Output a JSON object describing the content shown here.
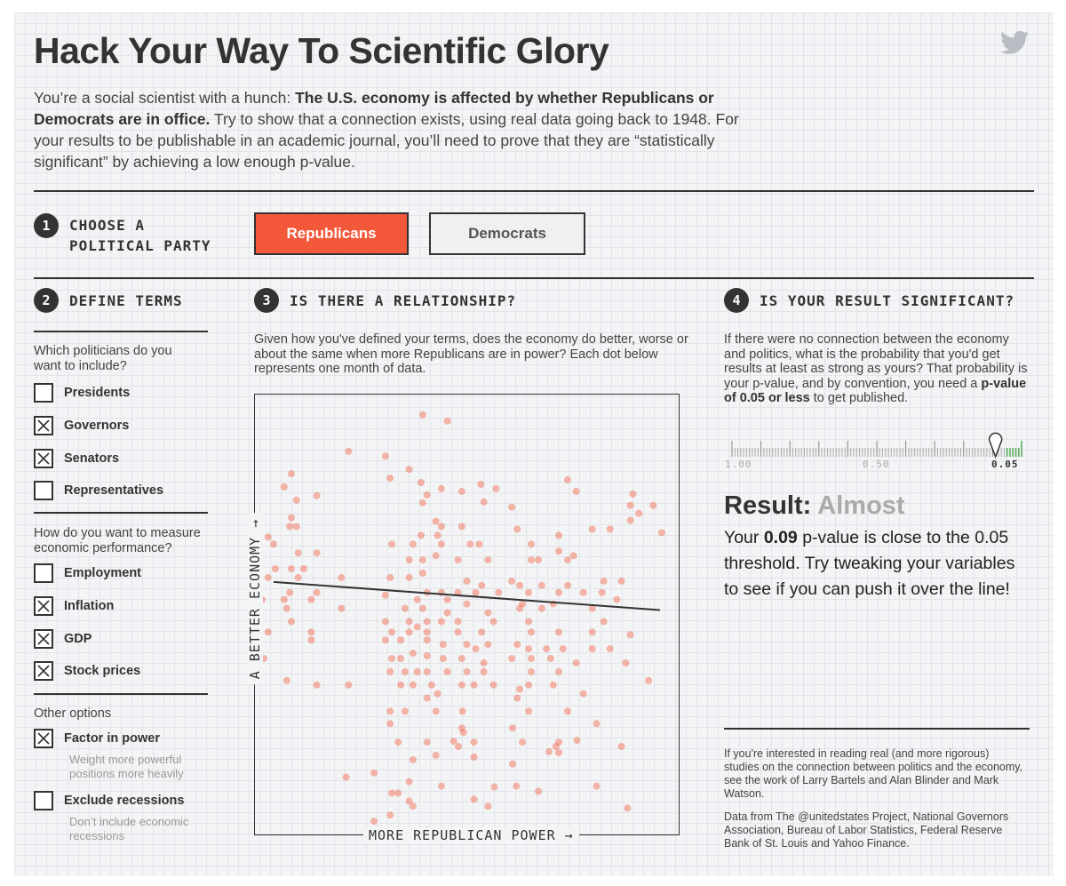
{
  "title": "Hack Your Way To Scientific Glory",
  "intro": {
    "lead": "You’re a social scientist with a hunch: ",
    "bold": "The U.S. economy is affected by whether Republicans or Democrats are in office.",
    "rest": " Try to show that a connection exists, using real data going back to 1948. For your results to be publishable in an academic journal, you’ll need to prove that they are “statistically significant” by achieving a low enough p-value."
  },
  "step1": {
    "num": "1",
    "label_line1": "CHOOSE A",
    "label_line2": "POLITICAL PARTY",
    "options": [
      "Republicans",
      "Democrats"
    ],
    "selected": "Republicans"
  },
  "step2": {
    "num": "2",
    "label": "DEFINE TERMS",
    "q1": "Which politicians do you want to include?",
    "politicians": [
      {
        "label": "Presidents",
        "checked": false
      },
      {
        "label": "Governors",
        "checked": true
      },
      {
        "label": "Senators",
        "checked": true
      },
      {
        "label": "Representatives",
        "checked": false
      }
    ],
    "q2": "How do you want to measure economic performance?",
    "measures": [
      {
        "label": "Employment",
        "checked": false
      },
      {
        "label": "Inflation",
        "checked": true
      },
      {
        "label": "GDP",
        "checked": true
      },
      {
        "label": "Stock prices",
        "checked": true
      }
    ],
    "other_label": "Other options",
    "factor": {
      "label": "Factor in power",
      "checked": true,
      "sub": "Weight more powerful positions more heavily"
    },
    "recess": {
      "label": "Exclude recessions",
      "checked": false,
      "sub": "Don’t include economic recessions"
    }
  },
  "step3": {
    "num": "3",
    "label": "IS THERE A RELATIONSHIP?",
    "desc": "Given how you've defined your terms, does the economy do better, worse or about the same when more Republicans are in power? Each dot below represents one month of data.",
    "y_label": "A BETTER ECONOMY →",
    "x_label": "MORE REPUBLICAN POWER →"
  },
  "chart_data": {
    "type": "scatter",
    "xlabel": "MORE REPUBLICAN POWER →",
    "ylabel": "A BETTER ECONOMY →",
    "xlim": [
      0,
      100
    ],
    "ylim": [
      0,
      100
    ],
    "color": "#f4583a",
    "points": [
      [
        39.6,
        95.4
      ],
      [
        45.4,
        94.0
      ],
      [
        22.1,
        87.1
      ],
      [
        30.8,
        86.0
      ],
      [
        36.4,
        83.0
      ],
      [
        31.9,
        81.0
      ],
      [
        8.6,
        82.0
      ],
      [
        6.9,
        79.0
      ],
      [
        39.2,
        80.0
      ],
      [
        53.3,
        79.6
      ],
      [
        56.9,
        78.6
      ],
      [
        73.8,
        80.6
      ],
      [
        44.0,
        78.6
      ],
      [
        48.8,
        78.0
      ],
      [
        14.6,
        77.0
      ],
      [
        9.8,
        76.0
      ],
      [
        39.6,
        75.4
      ],
      [
        40.6,
        77.2
      ],
      [
        54.0,
        75.6
      ],
      [
        60.6,
        74.4
      ],
      [
        75.8,
        78.0
      ],
      [
        89.2,
        77.4
      ],
      [
        88.6,
        74.8
      ],
      [
        94.0,
        74.8
      ],
      [
        90.6,
        73.0
      ],
      [
        88.6,
        71.4
      ],
      [
        8.6,
        72.0
      ],
      [
        8.2,
        70.0
      ],
      [
        9.8,
        70.0
      ],
      [
        42.7,
        71.2
      ],
      [
        44.0,
        70.0
      ],
      [
        48.8,
        70.0
      ],
      [
        39.2,
        68.0
      ],
      [
        43.1,
        68.0
      ],
      [
        61.9,
        69.4
      ],
      [
        79.6,
        69.4
      ],
      [
        83.8,
        69.4
      ],
      [
        3.1,
        67.6
      ],
      [
        4.4,
        66.0
      ],
      [
        10.2,
        64.0
      ],
      [
        14.6,
        64.0
      ],
      [
        32.3,
        66.0
      ],
      [
        37.3,
        66.0
      ],
      [
        44.0,
        66.0
      ],
      [
        50.8,
        66.0
      ],
      [
        52.9,
        66.0
      ],
      [
        65.2,
        66.0
      ],
      [
        71.7,
        68.0
      ],
      [
        96.0,
        68.6
      ],
      [
        42.7,
        63.4
      ],
      [
        36.4,
        62.4
      ],
      [
        39.6,
        62.4
      ],
      [
        47.9,
        62.4
      ],
      [
        55.0,
        62.4
      ],
      [
        65.2,
        62.4
      ],
      [
        66.9,
        62.4
      ],
      [
        73.8,
        62.4
      ],
      [
        75.2,
        63.4
      ],
      [
        71.7,
        64.4
      ],
      [
        4.8,
        60.4
      ],
      [
        8.6,
        60.4
      ],
      [
        11.5,
        60.4
      ],
      [
        3.1,
        58.4
      ],
      [
        10.2,
        58.4
      ],
      [
        20.4,
        58.4
      ],
      [
        31.9,
        58.4
      ],
      [
        36.4,
        58.4
      ],
      [
        39.6,
        59.4
      ],
      [
        50.0,
        57.6
      ],
      [
        53.5,
        56.6
      ],
      [
        60.6,
        57.6
      ],
      [
        62.5,
        56.6
      ],
      [
        67.7,
        56.6
      ],
      [
        73.8,
        56.6
      ],
      [
        82.3,
        57.6
      ],
      [
        86.5,
        57.6
      ],
      [
        8.2,
        55.0
      ],
      [
        14.6,
        55.0
      ],
      [
        40.6,
        55.0
      ],
      [
        44.0,
        55.0
      ],
      [
        47.9,
        55.0
      ],
      [
        52.1,
        55.0
      ],
      [
        57.5,
        55.0
      ],
      [
        64.6,
        55.0
      ],
      [
        71.7,
        55.0
      ],
      [
        77.5,
        55.0
      ],
      [
        81.9,
        55.0
      ],
      [
        1.7,
        53.4
      ],
      [
        6.9,
        53.4
      ],
      [
        13.3,
        53.4
      ],
      [
        30.8,
        54.4
      ],
      [
        38.3,
        53.4
      ],
      [
        45.4,
        53.4
      ],
      [
        50.0,
        52.4
      ],
      [
        63.1,
        52.4
      ],
      [
        70.4,
        52.4
      ],
      [
        85.4,
        53.4
      ],
      [
        7.5,
        51.4
      ],
      [
        20.4,
        51.4
      ],
      [
        35.4,
        51.4
      ],
      [
        39.6,
        51.4
      ],
      [
        45.4,
        50.4
      ],
      [
        55.0,
        50.4
      ],
      [
        62.5,
        51.4
      ],
      [
        67.7,
        51.4
      ],
      [
        79.6,
        51.4
      ],
      [
        0.8,
        48.4
      ],
      [
        8.6,
        48.4
      ],
      [
        30.8,
        48.4
      ],
      [
        36.4,
        48.4
      ],
      [
        40.6,
        48.4
      ],
      [
        44.0,
        48.4
      ],
      [
        47.9,
        48.4
      ],
      [
        56.3,
        48.4
      ],
      [
        64.6,
        48.4
      ],
      [
        82.3,
        48.4
      ],
      [
        3.1,
        46.0
      ],
      [
        13.3,
        46.0
      ],
      [
        32.3,
        46.0
      ],
      [
        36.4,
        46.0
      ],
      [
        38.3,
        47.2
      ],
      [
        40.6,
        46.0
      ],
      [
        47.9,
        46.0
      ],
      [
        53.5,
        46.0
      ],
      [
        65.2,
        46.0
      ],
      [
        71.7,
        46.0
      ],
      [
        79.6,
        46.0
      ],
      [
        88.6,
        45.4
      ],
      [
        13.3,
        44.2
      ],
      [
        30.8,
        44.2
      ],
      [
        34.4,
        44.2
      ],
      [
        40.6,
        44.2
      ],
      [
        44.4,
        43.2
      ],
      [
        50.0,
        43.2
      ],
      [
        52.1,
        42.2
      ],
      [
        55.0,
        43.2
      ],
      [
        61.9,
        43.2
      ],
      [
        64.6,
        42.2
      ],
      [
        68.8,
        42.2
      ],
      [
        72.7,
        42.2
      ],
      [
        79.6,
        42.2
      ],
      [
        83.8,
        42.2
      ],
      [
        2.1,
        40.0
      ],
      [
        32.3,
        40.0
      ],
      [
        34.4,
        40.0
      ],
      [
        37.3,
        41.2
      ],
      [
        40.6,
        40.6
      ],
      [
        44.4,
        40.0
      ],
      [
        48.8,
        40.0
      ],
      [
        54.0,
        39.0
      ],
      [
        60.6,
        40.0
      ],
      [
        65.2,
        40.0
      ],
      [
        69.8,
        40.0
      ],
      [
        75.8,
        39.0
      ],
      [
        87.5,
        39.0
      ],
      [
        31.9,
        37.0
      ],
      [
        35.4,
        37.0
      ],
      [
        38.3,
        37.0
      ],
      [
        40.6,
        37.0
      ],
      [
        45.4,
        37.0
      ],
      [
        50.0,
        37.0
      ],
      [
        54.0,
        37.0
      ],
      [
        65.2,
        37.0
      ],
      [
        71.7,
        37.0
      ],
      [
        7.5,
        35.0
      ],
      [
        14.6,
        34.0
      ],
      [
        22.1,
        34.0
      ],
      [
        34.4,
        34.0
      ],
      [
        37.3,
        34.0
      ],
      [
        41.7,
        34.0
      ],
      [
        48.8,
        34.0
      ],
      [
        51.7,
        34.0
      ],
      [
        56.3,
        34.0
      ],
      [
        64.6,
        34.0
      ],
      [
        70.4,
        34.0
      ],
      [
        77.5,
        32.0
      ],
      [
        92.9,
        35.0
      ],
      [
        40.6,
        31.0
      ],
      [
        43.1,
        32.0
      ],
      [
        61.9,
        31.0
      ],
      [
        62.5,
        33.0
      ],
      [
        31.9,
        28.0
      ],
      [
        35.4,
        28.0
      ],
      [
        42.7,
        28.0
      ],
      [
        49.0,
        28.0
      ],
      [
        64.6,
        28.0
      ],
      [
        73.8,
        28.0
      ],
      [
        31.9,
        25.2
      ],
      [
        48.8,
        24.2
      ],
      [
        49.2,
        23.2
      ],
      [
        60.8,
        24.2
      ],
      [
        80.6,
        25.2
      ],
      [
        33.8,
        21.0
      ],
      [
        40.6,
        21.0
      ],
      [
        46.9,
        21.2
      ],
      [
        51.7,
        21.0
      ],
      [
        63.1,
        21.0
      ],
      [
        71.7,
        21.0
      ],
      [
        76.0,
        21.4
      ],
      [
        48.0,
        20.0
      ],
      [
        71.0,
        20.0
      ],
      [
        86.5,
        20.0
      ],
      [
        71.7,
        18.6
      ],
      [
        42.7,
        18.0
      ],
      [
        51.7,
        17.6
      ],
      [
        69.4,
        18.8
      ],
      [
        37.3,
        17.0
      ],
      [
        60.8,
        16.0
      ],
      [
        28.1,
        14.0
      ],
      [
        21.5,
        13.0
      ],
      [
        36.4,
        12.0
      ],
      [
        44.0,
        11.0
      ],
      [
        56.5,
        10.8
      ],
      [
        32.3,
        9.4
      ],
      [
        33.8,
        9.4
      ],
      [
        36.4,
        7.6
      ],
      [
        51.7,
        8.0
      ],
      [
        37.3,
        6.4
      ],
      [
        55.0,
        6.4
      ],
      [
        66.9,
        9.8
      ],
      [
        61.7,
        11.0
      ],
      [
        31.9,
        4.4
      ],
      [
        80.6,
        11.0
      ],
      [
        87.9,
        6.0
      ],
      [
        28.1,
        3.0
      ],
      [
        40.6,
        1.0
      ]
    ],
    "trend": {
      "x0": 4.4,
      "y0": 57.4,
      "x1": 95.6,
      "y1": 51.0
    }
  },
  "step4": {
    "num": "4",
    "label": "IS YOUR RESULT SIGNIFICANT?",
    "desc_lead": "If there were no connection between the economy and politics, what is the probability that you'd get results at least as strong as yours? That probability is your p-value, and by convention, you need a ",
    "desc_bold": "p-value of 0.05 or less",
    "desc_end": " to get published.",
    "scale": {
      "ticks": [
        "1.00",
        "0.50",
        "0.05"
      ],
      "value": 0.09,
      "threshold": 0.05
    },
    "result_label": "Result:",
    "result_word": "Almost",
    "result_text_1": "Your ",
    "result_value": "0.09",
    "result_text_2": " p-value is close to the 0.05 threshold. Try tweaking your variables to see if you can push it over the line!",
    "footnote1": "If you're interested in reading real (and more rigorous) studies on the connection between politics and the economy, see the work of Larry Bartels and Alan Blinder and Mark Watson.",
    "footnote2": "Data from The @unitedstates Project, National Governors Association, Bureau of Labor Statistics, Federal Reserve Bank of St. Louis and Yahoo Finance."
  },
  "colors": {
    "accent": "#f4583a",
    "ink": "#333333",
    "muted": "#aaaaaa",
    "good": "#5fae5f"
  },
  "icons": {
    "share": "twitter-bird-icon",
    "check": "x-mark-icon",
    "marker": "map-pin-icon"
  }
}
